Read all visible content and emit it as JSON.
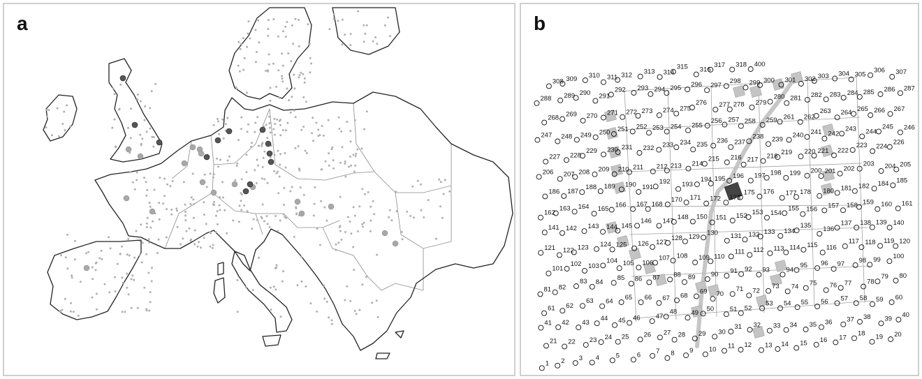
{
  "panel_a": {
    "label": "a",
    "colors": {
      "coast": "#222222",
      "border": "#8a8a8a",
      "small_site": "#b0b0b0",
      "medium_site": "#a8a8a8",
      "dark_site": "#555555"
    }
  },
  "panel_b": {
    "label": "b",
    "colors": {
      "node_stroke": "#111111",
      "grid": "#a0a0a0",
      "square": "#c4c4c4",
      "dark_square": "#444444",
      "path": "#c0c0c0"
    },
    "node_numbers": [
      "1",
      "2",
      "3",
      "4",
      "5",
      "6",
      "7",
      "8",
      "9",
      "10",
      "11",
      "12",
      "13",
      "14",
      "15",
      "16",
      "17",
      "18",
      "19",
      "20",
      "21",
      "22",
      "23",
      "24",
      "25",
      "26",
      "27",
      "28",
      "29",
      "30",
      "31",
      "32",
      "33",
      "34",
      "35",
      "36",
      "37",
      "38",
      "39",
      "40",
      "41",
      "42",
      "43",
      "44",
      "45",
      "46",
      "47",
      "48",
      "49",
      "50",
      "51",
      "52",
      "53",
      "54",
      "55",
      "56",
      "57",
      "58",
      "59",
      "60",
      "61",
      "62",
      "63",
      "64",
      "65",
      "66",
      "67",
      "68",
      "69",
      "70",
      "71",
      "72",
      "73",
      "74",
      "75",
      "76",
      "77",
      "78",
      "79",
      "80",
      "81",
      "82",
      "83",
      "84",
      "85",
      "86",
      "87",
      "88",
      "89",
      "90",
      "91",
      "92",
      "93",
      "94",
      "95",
      "96",
      "97",
      "98",
      "99",
      "100",
      "101",
      "102",
      "103",
      "104",
      "105",
      "106",
      "107",
      "108",
      "109",
      "110",
      "111",
      "112",
      "113",
      "114",
      "115",
      "116",
      "117",
      "118",
      "119",
      "120",
      "121",
      "122",
      "123",
      "124",
      "125",
      "126",
      "127",
      "128",
      "129",
      "130",
      "131",
      "132",
      "133",
      "134",
      "135",
      "136",
      "137",
      "138",
      "139",
      "140",
      "141",
      "142",
      "143",
      "144",
      "145",
      "146",
      "147",
      "148",
      "150",
      "151",
      "152",
      "153",
      "154",
      "155",
      "156",
      "157",
      "158",
      "159",
      "160",
      "161",
      "162",
      "163",
      "164",
      "165",
      "166",
      "167",
      "168",
      "170",
      "171",
      "172",
      "173",
      "175",
      "176",
      "177",
      "178",
      "180",
      "181",
      "182",
      "184",
      "185",
      "186",
      "187",
      "188",
      "189",
      "190",
      "191",
      "192",
      "193",
      "194",
      "195",
      "196",
      "197",
      "198",
      "199",
      "200",
      "201",
      "202",
      "203",
      "204",
      "205",
      "206",
      "207",
      "208",
      "209",
      "210",
      "211",
      "212",
      "213",
      "214",
      "215",
      "216",
      "217",
      "218",
      "219",
      "220",
      "221",
      "222",
      "223",
      "224",
      "226",
      "227",
      "228",
      "229",
      "230",
      "231",
      "232",
      "233",
      "234",
      "235",
      "236",
      "237",
      "238",
      "239",
      "240",
      "241",
      "242",
      "243",
      "244",
      "245",
      "246",
      "247",
      "248",
      "249",
      "250",
      "251",
      "252",
      "253",
      "254",
      "255",
      "256",
      "257",
      "258",
      "259",
      "261",
      "262",
      "263",
      "264",
      "265",
      "266",
      "267",
      "268",
      "269",
      "270",
      "271",
      "272",
      "273",
      "274",
      "275",
      "276",
      "277",
      "278",
      "279",
      "280",
      "281",
      "282",
      "283",
      "284",
      "285",
      "286",
      "287",
      "288",
      "289",
      "290",
      "291",
      "292",
      "293",
      "294",
      "295",
      "296",
      "297",
      "298",
      "299",
      "300",
      "301",
      "302",
      "303",
      "304",
      "305",
      "306",
      "307",
      "308",
      "309",
      "310",
      "311",
      "312",
      "313",
      "314",
      "315",
      "316",
      "317",
      "318",
      "400"
    ]
  }
}
